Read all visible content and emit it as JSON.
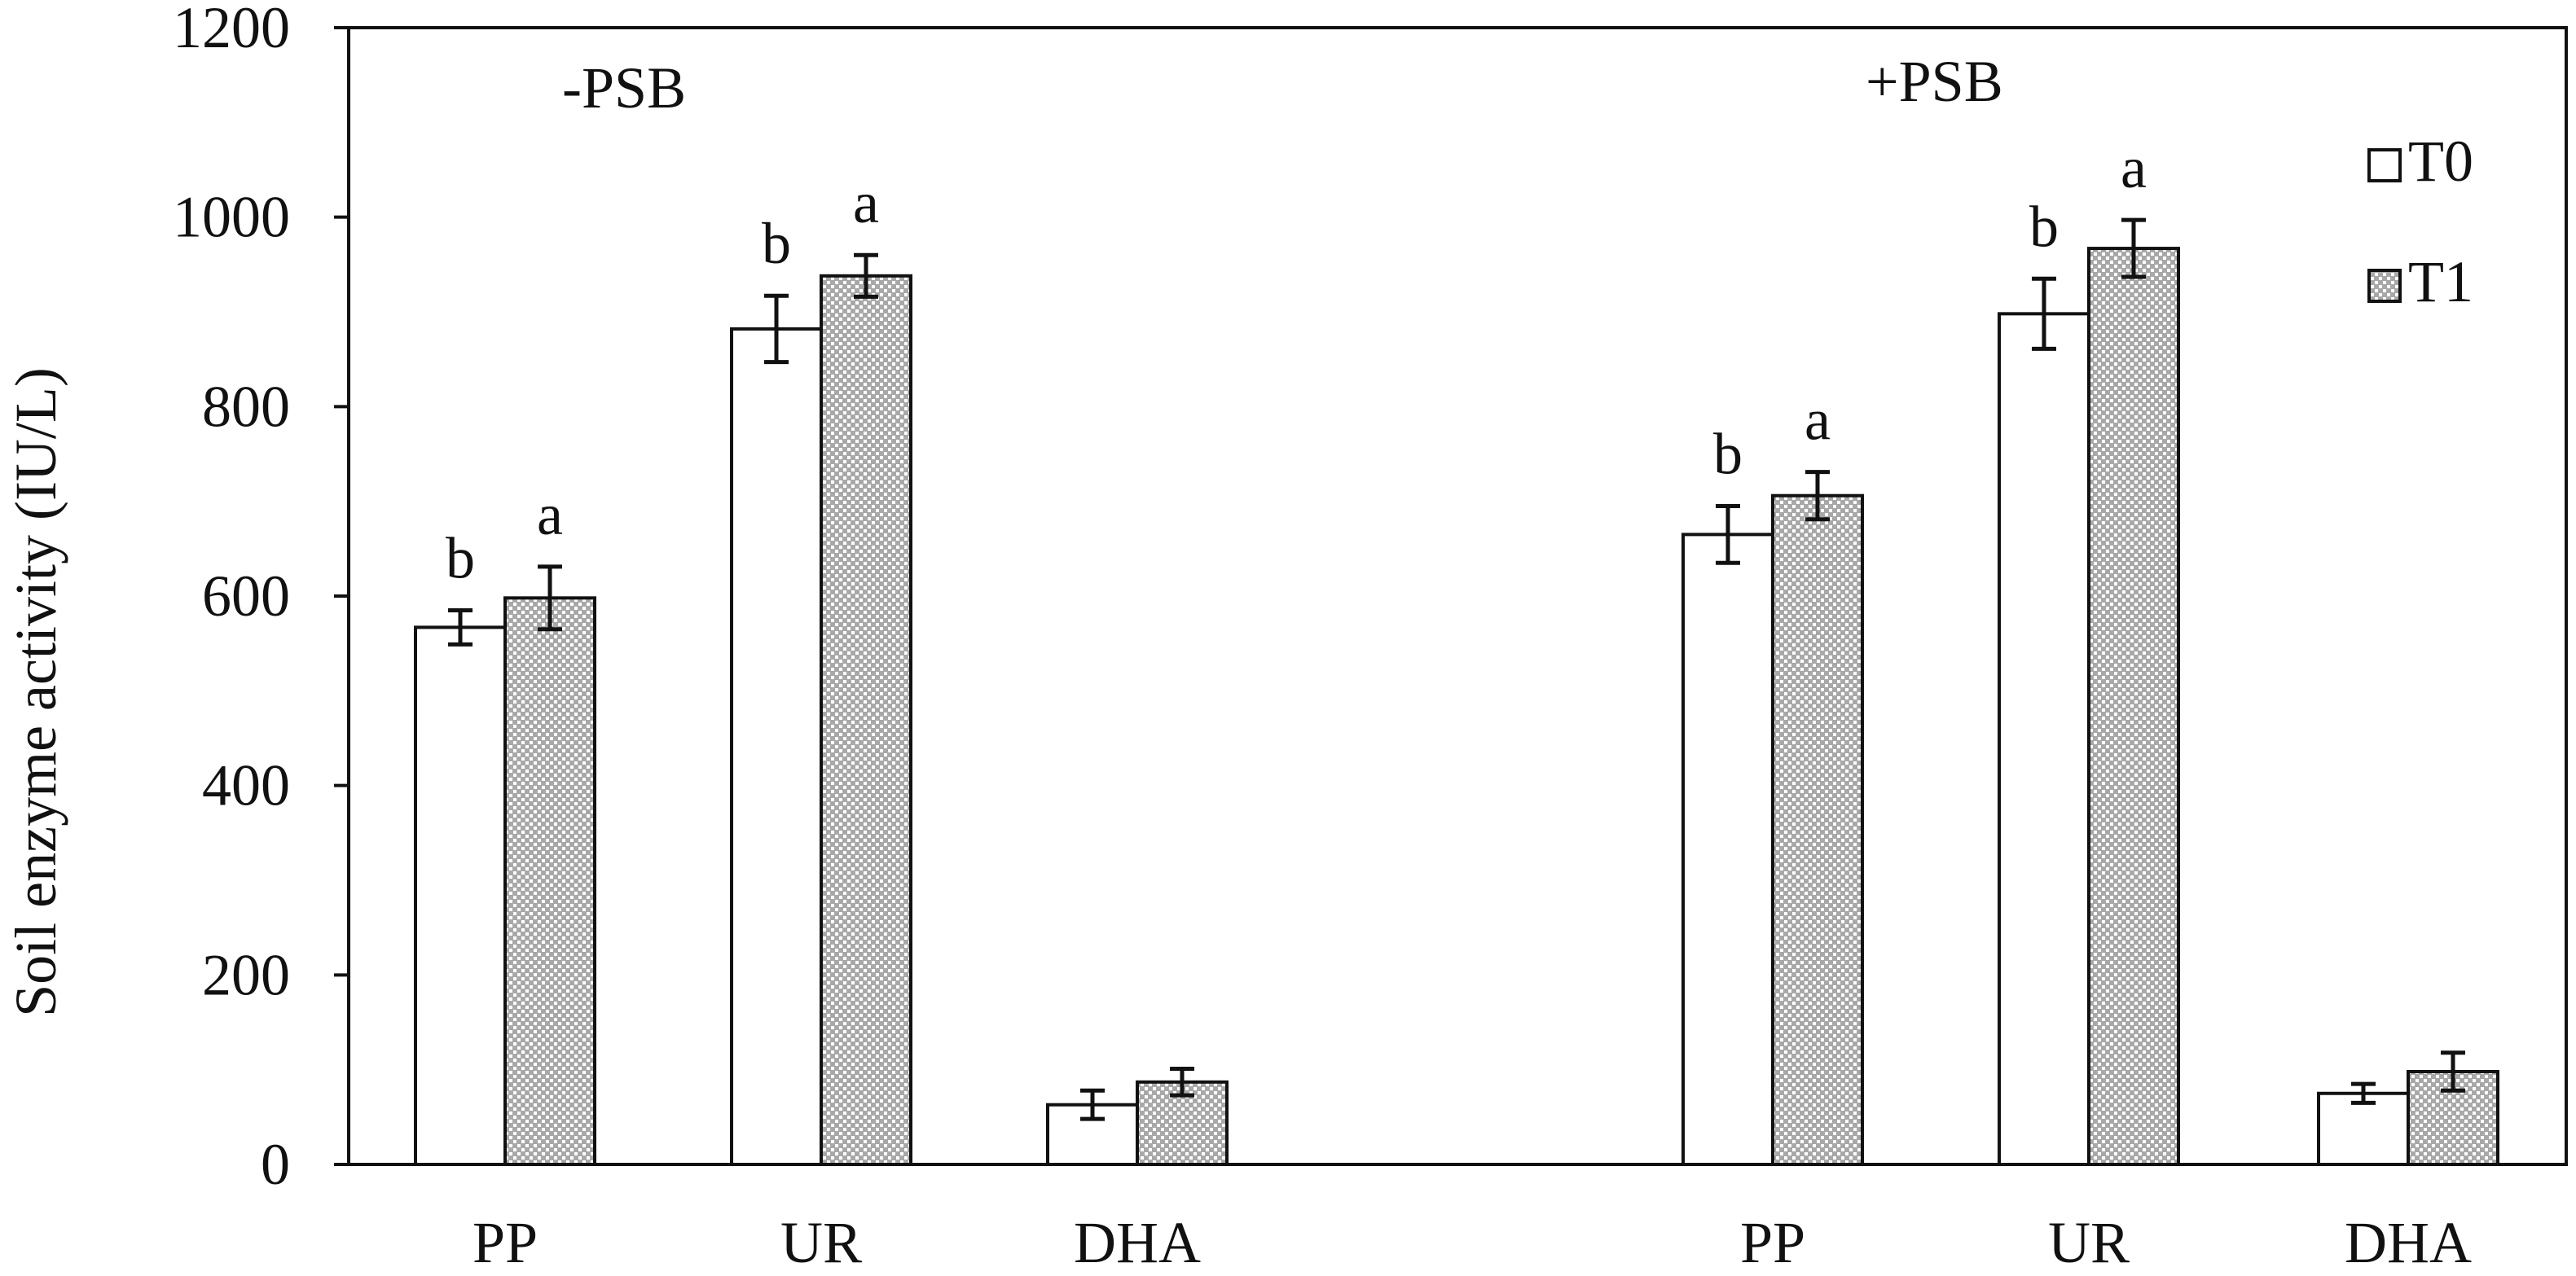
{
  "chart_data": {
    "type": "bar",
    "ylabel": "Soil enzyme activity (IU/L)",
    "ylim": [
      0,
      1200
    ],
    "yticks": [
      0,
      200,
      400,
      600,
      800,
      1000,
      1200
    ],
    "grid": false,
    "legend_position": "top-right",
    "groups": [
      {
        "label": "-PSB",
        "categories": [
          "PP",
          "UR",
          "DHA"
        ],
        "series": [
          {
            "name": "T0",
            "values": [
              567,
              882,
              63
            ],
            "errors": [
              18,
              35,
              15
            ],
            "letters": [
              "b",
              "b",
              ""
            ]
          },
          {
            "name": "T1",
            "values": [
              598,
              938,
              87
            ],
            "errors": [
              33,
              22,
              14
            ],
            "letters": [
              "a",
              "a",
              ""
            ]
          }
        ]
      },
      {
        "label": "+PSB",
        "categories": [
          "PP",
          "UR",
          "DHA"
        ],
        "series": [
          {
            "name": "T0",
            "values": [
              665,
              898,
              75
            ],
            "errors": [
              30,
              37,
              10
            ],
            "letters": [
              "b",
              "b",
              ""
            ]
          },
          {
            "name": "T1",
            "values": [
              706,
              967,
              98
            ],
            "errors": [
              25,
              30,
              20
            ],
            "letters": [
              "a",
              "a",
              ""
            ]
          }
        ]
      }
    ],
    "legend": [
      {
        "name": "T0",
        "fill": "#ffffff"
      },
      {
        "name": "T1",
        "fill": "hatched-grey"
      }
    ],
    "colors": {
      "outline": "#111111",
      "t0_fill": "#ffffff",
      "t1_pattern_bg": "#a8a8a8",
      "t1_pattern_dot": "#ffffff"
    }
  }
}
